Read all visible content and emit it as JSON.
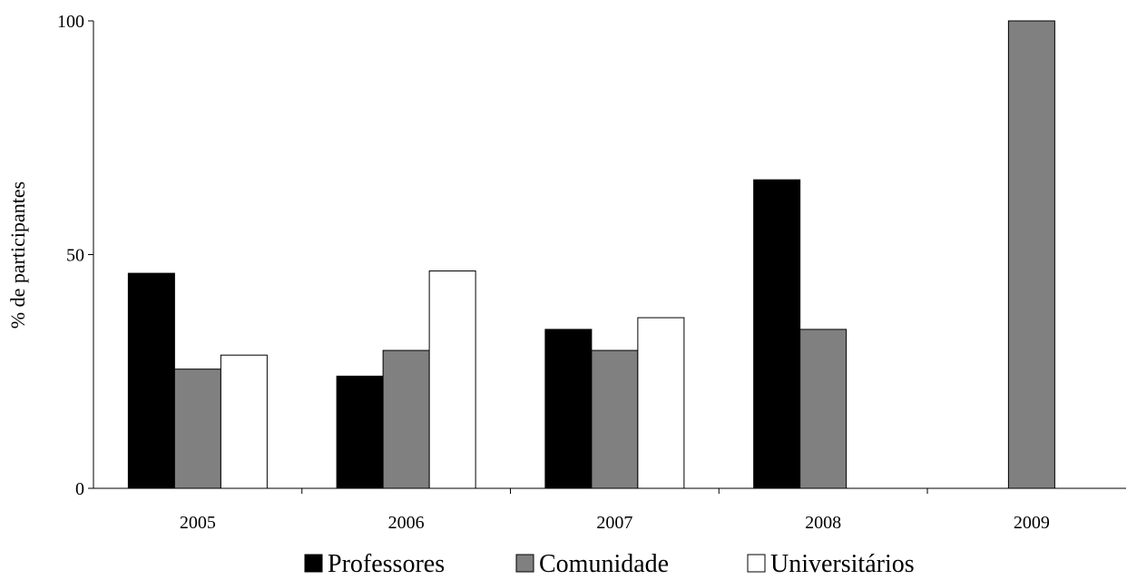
{
  "chart_data": {
    "type": "bar",
    "title": "",
    "xlabel": "",
    "ylabel": "% de participantes",
    "ylim": [
      0,
      100
    ],
    "yticks": [
      0,
      50,
      100
    ],
    "grid": false,
    "legend_position": "bottom",
    "categories": [
      "2005",
      "2006",
      "2007",
      "2008",
      "2009"
    ],
    "series": [
      {
        "name": "Professores",
        "color": "#000000",
        "values": [
          46,
          24,
          34,
          66,
          null
        ]
      },
      {
        "name": "Comunidade",
        "color": "#808080",
        "values": [
          25.5,
          29.5,
          29.5,
          34,
          100
        ]
      },
      {
        "name": "Universitários",
        "color": "#ffffff",
        "values": [
          28.5,
          46.5,
          36.5,
          null,
          null
        ]
      }
    ]
  }
}
